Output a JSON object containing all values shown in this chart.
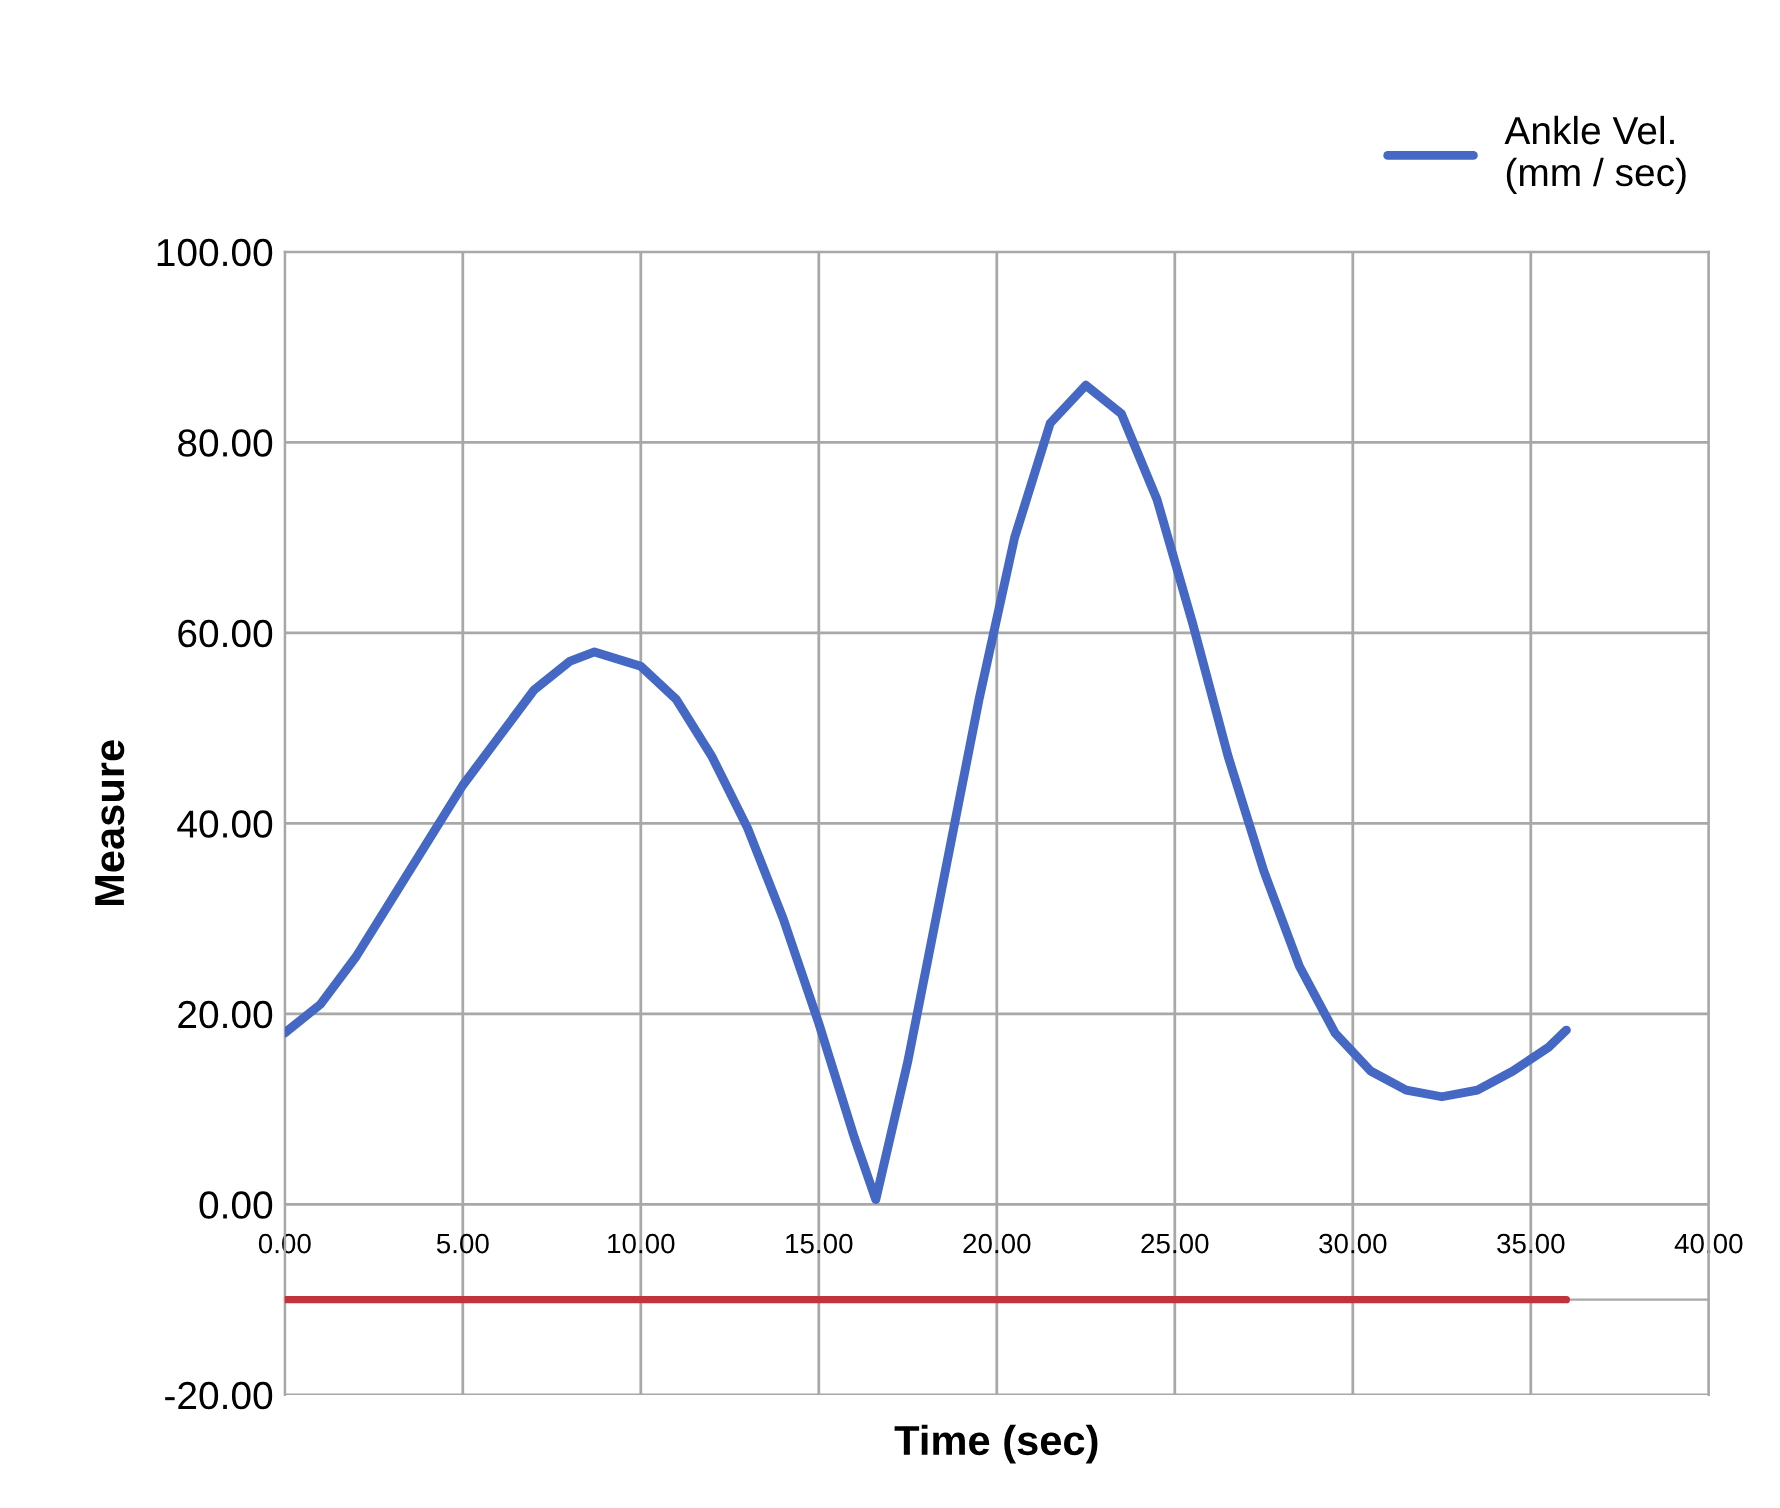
{
  "chart_data": {
    "type": "line",
    "xlabel": "Time (sec)",
    "ylabel": "Measure",
    "xlim": [
      0,
      40
    ],
    "ylim": [
      -20,
      100
    ],
    "xticks": [
      {
        "value": 0,
        "label": "0.00"
      },
      {
        "value": 5,
        "label": "5.00"
      },
      {
        "value": 10,
        "label": "10.00"
      },
      {
        "value": 15,
        "label": "15.00"
      },
      {
        "value": 20,
        "label": "20.00"
      },
      {
        "value": 25,
        "label": "25.00"
      },
      {
        "value": 30,
        "label": "30.00"
      },
      {
        "value": 35,
        "label": "35.00"
      },
      {
        "value": 40,
        "label": "40.00"
      }
    ],
    "yticks": [
      {
        "value": -20,
        "label": "-20.00"
      },
      {
        "value": 0,
        "label": "0.00"
      },
      {
        "value": 20,
        "label": "20.00"
      },
      {
        "value": 40,
        "label": "40.00"
      },
      {
        "value": 60,
        "label": "60.00"
      },
      {
        "value": 80,
        "label": "80.00"
      },
      {
        "value": 100,
        "label": "100.00"
      }
    ],
    "grid": true,
    "legend": "top right",
    "marker": "none",
    "line_style": "solid",
    "series": [
      {
        "name": "Ankle Vel.\n(mm / sec)",
        "color": "#4468c4",
        "x": [
          0,
          1,
          2,
          3,
          4,
          5,
          6,
          7,
          8,
          8.7,
          10,
          11,
          12,
          13,
          14,
          15,
          16,
          16.6,
          17.5,
          18.5,
          19.5,
          20.5,
          21.5,
          22.5,
          23.5,
          24.5,
          25.5,
          26.5,
          27.5,
          28.5,
          29.5,
          30.5,
          31.5,
          32.5,
          33.5,
          34.5,
          35.5,
          36
        ],
        "values": [
          18,
          21,
          26,
          32,
          38,
          44,
          49,
          54,
          57,
          58,
          56.5,
          53,
          47,
          39.5,
          30,
          19,
          7,
          0.5,
          15,
          34,
          53,
          70,
          82,
          86,
          83,
          74,
          61,
          47,
          35,
          25,
          18,
          14,
          12,
          11.3,
          12,
          14,
          16.5,
          18.3
        ]
      },
      {
        "color": "#c0343c",
        "x": [
          0,
          36
        ],
        "values": [
          -10,
          -10
        ]
      }
    ]
  }
}
